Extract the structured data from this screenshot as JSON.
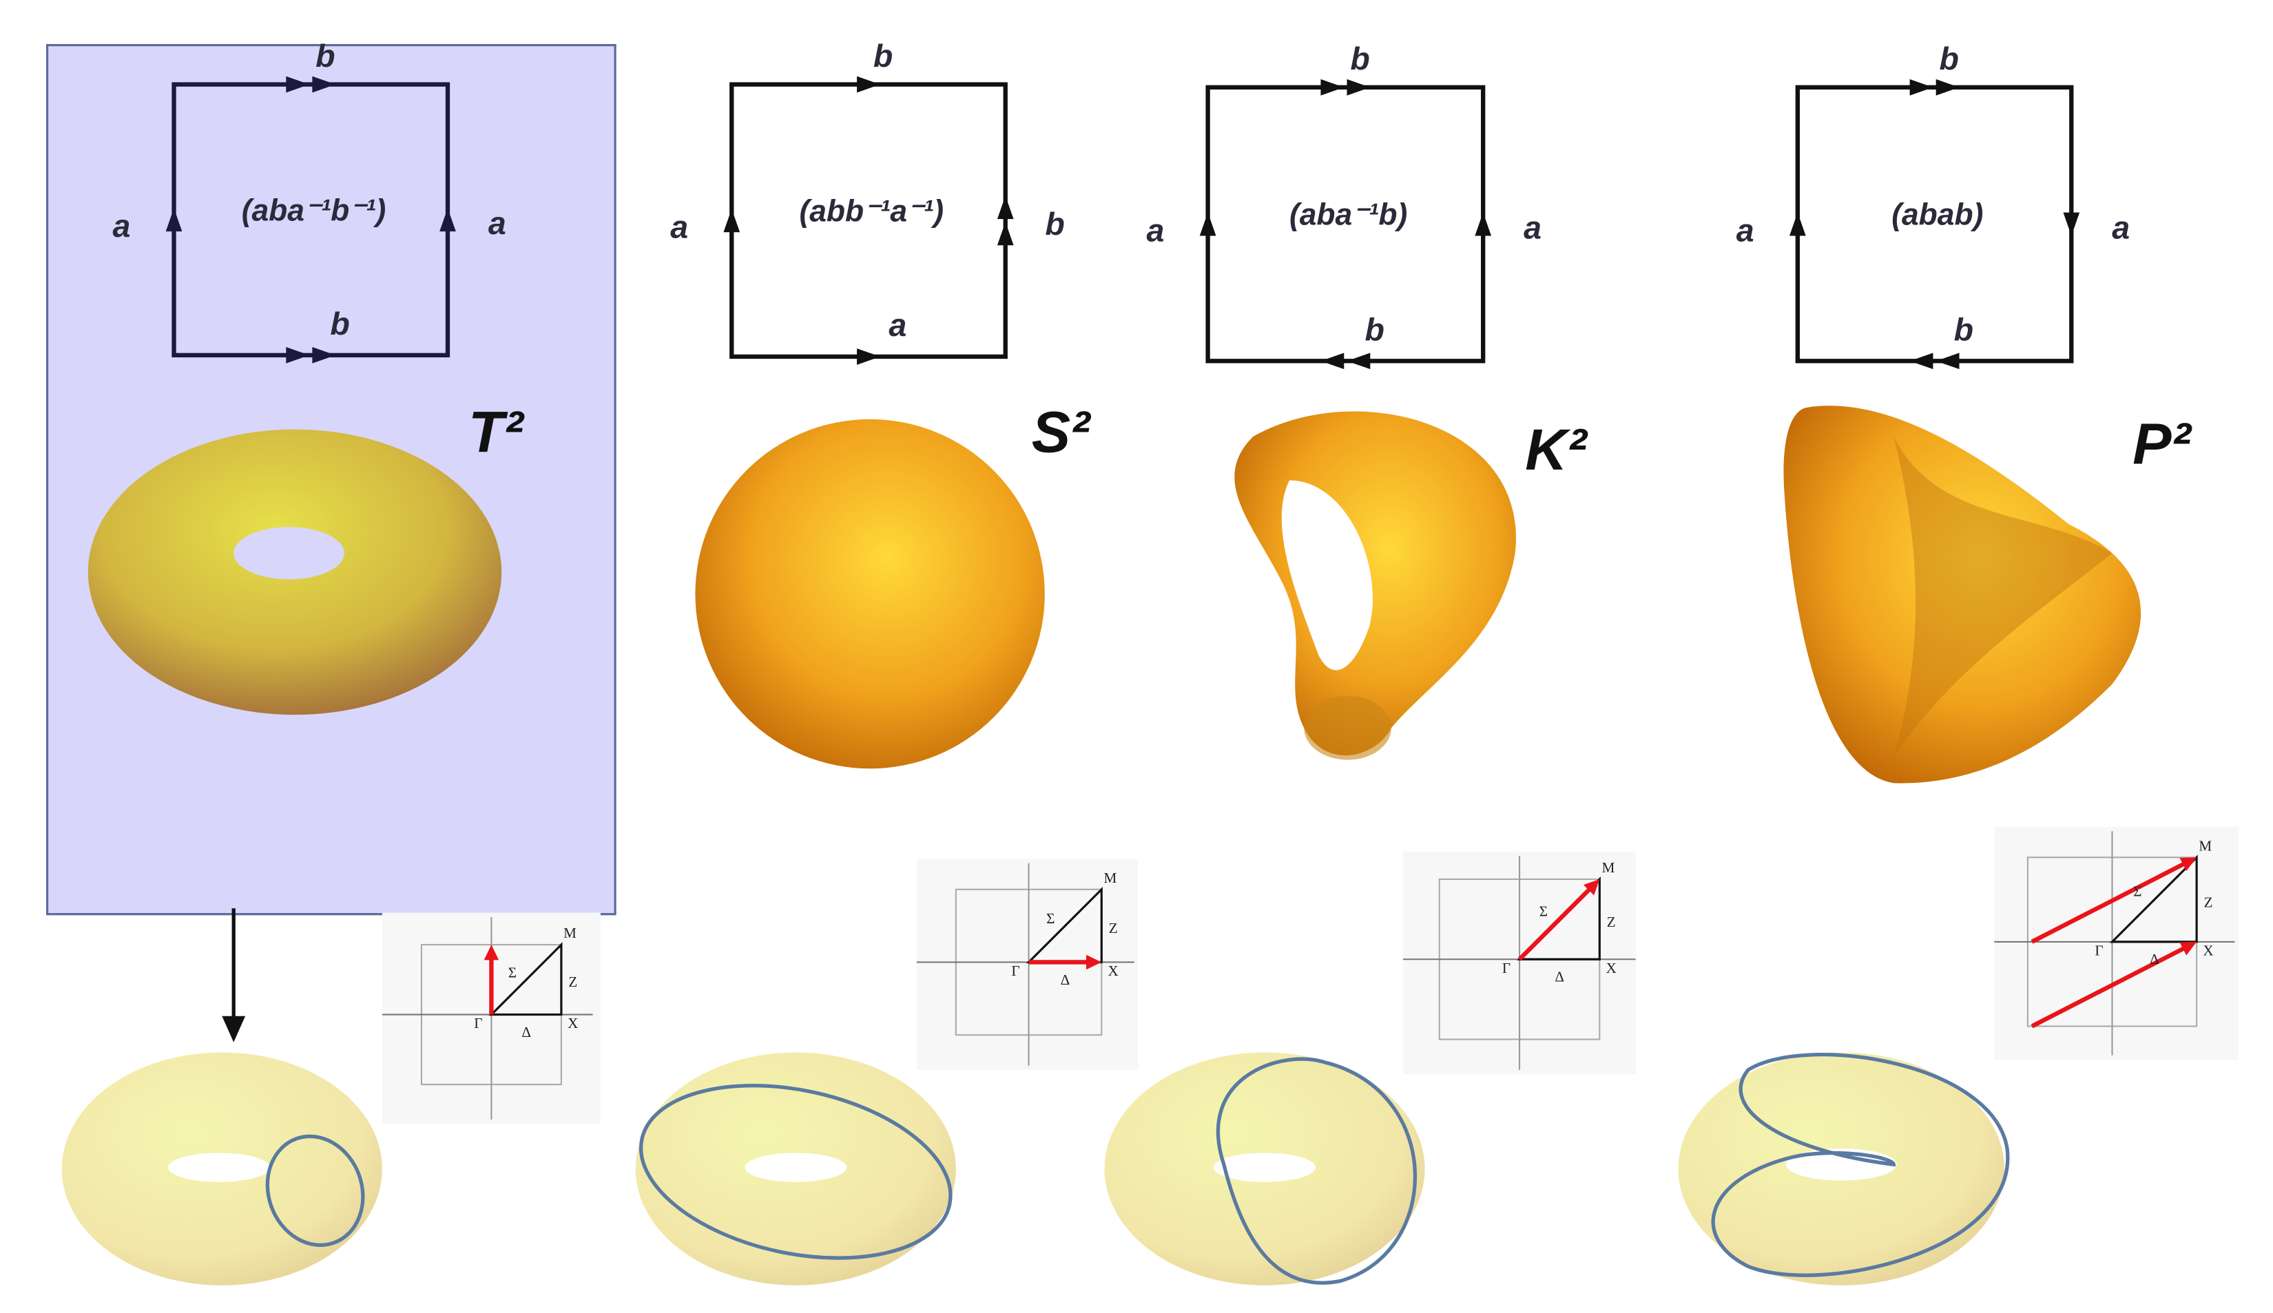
{
  "panels": [
    {
      "top": "b",
      "bottom": "b",
      "left": "a",
      "right": "a",
      "word": "(aba⁻¹b⁻¹)",
      "name": "T²"
    },
    {
      "top": "b",
      "bottom": "a",
      "left": "a",
      "right": "b",
      "word": "(abb⁻¹a⁻¹)",
      "name": "S²"
    },
    {
      "top": "b",
      "bottom": "b",
      "left": "a",
      "right": "a",
      "word": "(aba⁻¹b)",
      "name": "K²"
    },
    {
      "top": "b",
      "bottom": "b",
      "left": "a",
      "right": "a",
      "word": "(abab)",
      "name": "P²"
    }
  ],
  "insets": [
    [
      "M",
      "Σ",
      "Z",
      "Γ",
      "Δ",
      "X"
    ],
    [
      "M",
      "Σ",
      "Z",
      "Γ",
      "Δ",
      "X"
    ],
    [
      "M",
      "Σ",
      "Z",
      "Γ",
      "Δ",
      "X"
    ],
    [
      "M",
      "Σ",
      "Z",
      "Γ",
      "Δ",
      "X"
    ]
  ]
}
